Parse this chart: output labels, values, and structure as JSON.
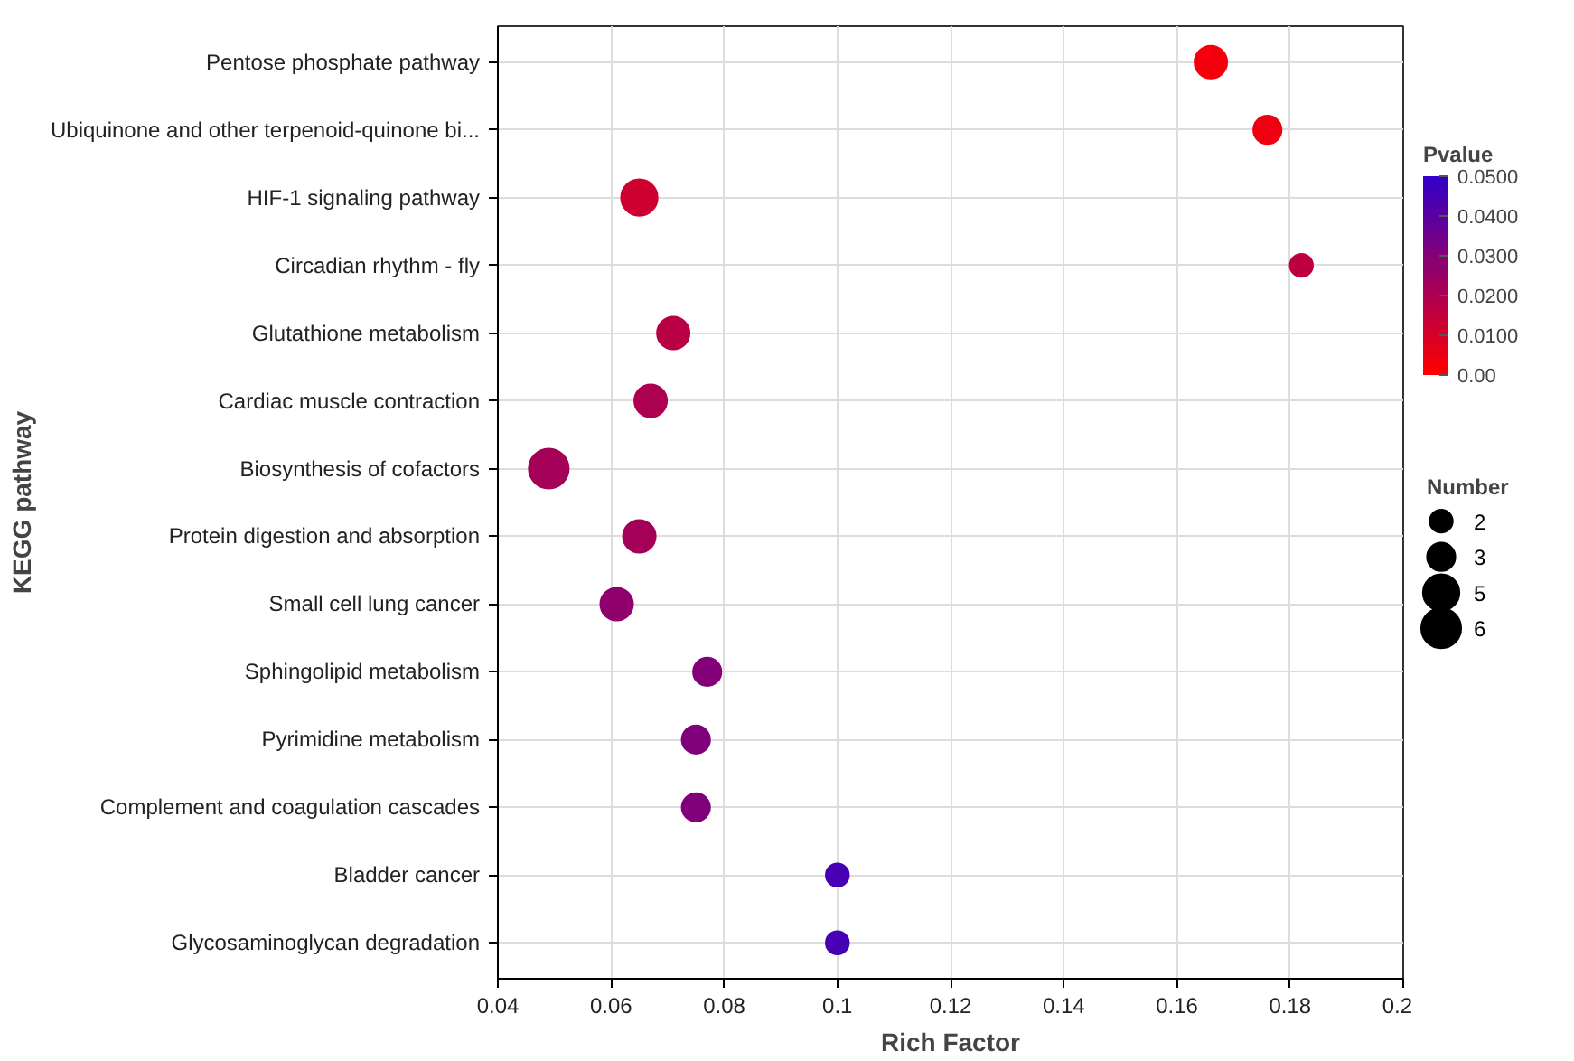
{
  "chart_data": {
    "type": "bubble",
    "orientation": "horizontal",
    "xlabel": "Rich Factor",
    "ylabel": "KEGG pathway",
    "clabel": "Pvalue",
    "legend_title": "Number",
    "grid": true,
    "marker": "circle",
    "categories": [
      "Pentose phosphate pathway",
      "Ubiquinone and other terpenoid-quinone bi...",
      "HIF-1 signaling pathway",
      "Circadian rhythm - fly",
      "Glutathione metabolism",
      "Cardiac muscle contraction",
      "Biosynthesis of cofactors",
      "Protein digestion and absorption",
      "Small cell lung cancer",
      "Sphingolipid metabolism",
      "Pyrimidine metabolism",
      "Complement and coagulation cascades",
      "Bladder cancer",
      "Glycosaminoglycan degradation"
    ],
    "values": [
      0.166,
      0.176,
      0.065,
      0.182,
      0.071,
      0.067,
      0.049,
      0.065,
      0.061,
      0.077,
      0.075,
      0.075,
      0.1,
      0.1
    ],
    "sizes": [
      4,
      3,
      5,
      2,
      4,
      4,
      6,
      4,
      4,
      3,
      3,
      3,
      2,
      2
    ],
    "size_legend": [
      2,
      3,
      5,
      6
    ],
    "cvalues": [
      0.003,
      0.004,
      0.012,
      0.016,
      0.017,
      0.02,
      0.022,
      0.022,
      0.027,
      0.03,
      0.031,
      0.031,
      0.045,
      0.045
    ],
    "colors": [
      "#f3000c",
      "#ef0010",
      "#ce0030",
      "#bd0040",
      "#b90044",
      "#ad0050",
      "#a50058",
      "#a50058",
      "#90006c",
      "#840078",
      "#80007c",
      "#80007c",
      "#4700b4",
      "#4700b4"
    ],
    "clim": [
      0,
      0.05
    ],
    "cticks": [
      {
        "value": 0,
        "label": "0.00"
      },
      {
        "value": 0.01,
        "label": "0.0100"
      },
      {
        "value": 0.02,
        "label": "0.0200"
      },
      {
        "value": 0.03,
        "label": "0.0300"
      },
      {
        "value": 0.04,
        "label": "0.0400"
      },
      {
        "value": 0.05,
        "label": "0.0500"
      }
    ],
    "xlim": [
      0.04,
      0.2
    ],
    "xticks": [
      0.04,
      0.06,
      0.08,
      {
        "value": 0.1,
        "label": "0.1"
      },
      0.12,
      0.14,
      0.16,
      0.18,
      {
        "value": 0.2,
        "label": "0.2"
      }
    ]
  }
}
